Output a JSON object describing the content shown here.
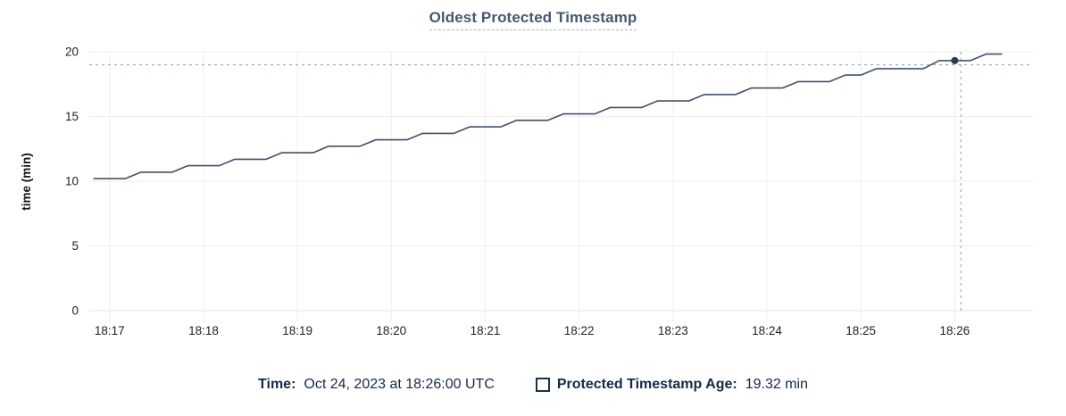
{
  "title": {
    "text": "Oldest Protected Timestamp"
  },
  "legend": {
    "time_label": "Time:",
    "time_value": "Oct 24, 2023 at 18:26:00 UTC",
    "series_label": "Protected Timestamp Age:",
    "series_value": "19.32 min"
  },
  "colors": {
    "title": "#475872",
    "line": "#42506a",
    "dot": "#2c3a57",
    "crosshair": "#9db0bd",
    "grid": "#efefef",
    "axis": "#e0e0e0",
    "tick_text": "#1c2127",
    "legend_text": "#152a46"
  },
  "chart_data": {
    "type": "line",
    "title": "Oldest Protected Timestamp",
    "xlabel": "",
    "ylabel": "time (min)",
    "ylim": [
      0,
      20
    ],
    "y_ticks": [
      0,
      5,
      10,
      15,
      20
    ],
    "x_ticks": [
      "18:17",
      "18:18",
      "18:19",
      "18:20",
      "18:21",
      "18:22",
      "18:23",
      "18:24",
      "18:25",
      "18:26"
    ],
    "x_start": "18:16:47",
    "x_end": "18:26:50",
    "grid": true,
    "legend_position": "bottom",
    "series": [
      {
        "name": "Protected Timestamp Age",
        "unit": "min",
        "points": [
          [
            "18:16:50",
            10.2
          ],
          [
            "18:17:00",
            10.2
          ],
          [
            "18:17:10",
            10.2
          ],
          [
            "18:17:20",
            10.7
          ],
          [
            "18:17:30",
            10.7
          ],
          [
            "18:17:40",
            10.7
          ],
          [
            "18:17:50",
            11.2
          ],
          [
            "18:18:00",
            11.2
          ],
          [
            "18:18:10",
            11.2
          ],
          [
            "18:18:20",
            11.7
          ],
          [
            "18:18:30",
            11.7
          ],
          [
            "18:18:40",
            11.7
          ],
          [
            "18:18:50",
            12.2
          ],
          [
            "18:19:00",
            12.2
          ],
          [
            "18:19:10",
            12.2
          ],
          [
            "18:19:20",
            12.7
          ],
          [
            "18:19:30",
            12.7
          ],
          [
            "18:19:40",
            12.7
          ],
          [
            "18:19:50",
            13.2
          ],
          [
            "18:20:00",
            13.2
          ],
          [
            "18:20:10",
            13.2
          ],
          [
            "18:20:20",
            13.7
          ],
          [
            "18:20:30",
            13.7
          ],
          [
            "18:20:40",
            13.7
          ],
          [
            "18:20:50",
            14.2
          ],
          [
            "18:21:00",
            14.2
          ],
          [
            "18:21:10",
            14.2
          ],
          [
            "18:21:20",
            14.7
          ],
          [
            "18:21:30",
            14.7
          ],
          [
            "18:21:40",
            14.7
          ],
          [
            "18:21:50",
            15.2
          ],
          [
            "18:22:00",
            15.2
          ],
          [
            "18:22:10",
            15.2
          ],
          [
            "18:22:20",
            15.7
          ],
          [
            "18:22:30",
            15.7
          ],
          [
            "18:22:40",
            15.7
          ],
          [
            "18:22:50",
            16.2
          ],
          [
            "18:23:00",
            16.2
          ],
          [
            "18:23:10",
            16.2
          ],
          [
            "18:23:20",
            16.7
          ],
          [
            "18:23:30",
            16.7
          ],
          [
            "18:23:40",
            16.7
          ],
          [
            "18:23:50",
            17.2
          ],
          [
            "18:24:00",
            17.2
          ],
          [
            "18:24:10",
            17.2
          ],
          [
            "18:24:20",
            17.7
          ],
          [
            "18:24:30",
            17.7
          ],
          [
            "18:24:40",
            17.7
          ],
          [
            "18:24:50",
            18.2
          ],
          [
            "18:25:00",
            18.2
          ],
          [
            "18:25:10",
            18.7
          ],
          [
            "18:25:20",
            18.7
          ],
          [
            "18:25:30",
            18.7
          ],
          [
            "18:25:40",
            18.7
          ],
          [
            "18:25:50",
            19.32
          ],
          [
            "18:26:00",
            19.32
          ],
          [
            "18:26:10",
            19.32
          ],
          [
            "18:26:20",
            19.82
          ],
          [
            "18:26:30",
            19.82
          ]
        ]
      }
    ],
    "highlight": {
      "point_time": "18:26:00",
      "point_value": 19.32,
      "crosshair_time": "18:26:04",
      "crosshair_value": 19.0
    }
  }
}
